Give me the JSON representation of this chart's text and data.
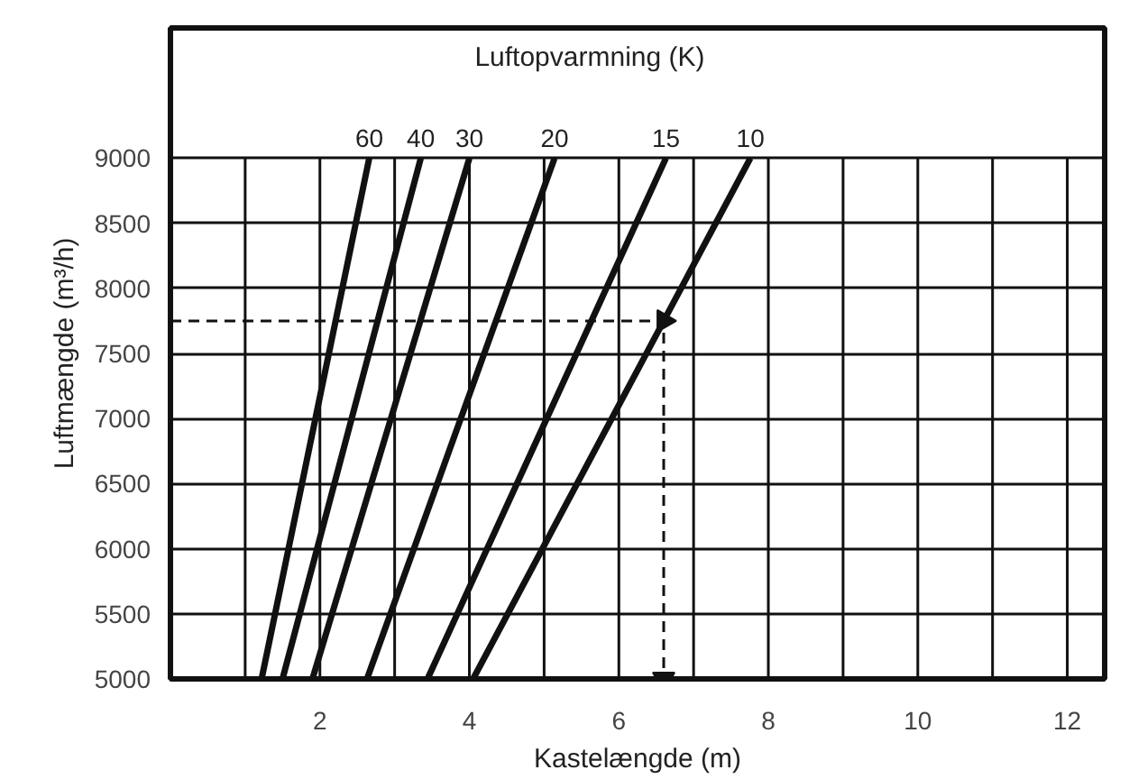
{
  "chart_data": {
    "type": "line",
    "legend_title": "Luftopvarmning (K)",
    "xlabel": "Kastelængde (m)",
    "ylabel": "Luftmængde (m³/h)",
    "series": [
      {
        "name": "60",
        "color": "#111111",
        "x": [
          1.22,
          2.66
        ],
        "values": [
          5000,
          9000
        ]
      },
      {
        "name": "40",
        "color": "#111111",
        "x": [
          1.5,
          3.35
        ],
        "values": [
          5000,
          9000
        ]
      },
      {
        "name": "30",
        "color": "#111111",
        "x": [
          1.9,
          4.0
        ],
        "values": [
          5000,
          9000
        ]
      },
      {
        "name": "20",
        "color": "#111111",
        "x": [
          2.63,
          5.14
        ],
        "values": [
          5000,
          9000
        ]
      },
      {
        "name": "15",
        "color": "#111111",
        "x": [
          3.44,
          6.63
        ],
        "values": [
          5000,
          9000
        ]
      },
      {
        "name": "10",
        "color": "#111111",
        "x": [
          4.05,
          7.76
        ],
        "values": [
          5000,
          9000
        ]
      },
      {
        "color": "#111111",
        "line_style": "dashed",
        "marker": "triangle",
        "x": [
          0,
          6.6,
          6.6
        ],
        "values": [
          7750,
          7750,
          5000
        ]
      }
    ],
    "xlim": [
      0,
      12.5
    ],
    "ylim": [
      5000,
      10000
    ],
    "xticks": [
      {
        "value": 1,
        "label": null
      },
      2,
      {
        "value": 3,
        "label": null
      },
      4,
      {
        "value": 5,
        "label": null
      },
      6,
      {
        "value": 7,
        "label": null
      },
      8,
      {
        "value": 9,
        "label": null
      },
      10,
      {
        "value": 11,
        "label": null
      },
      12
    ],
    "yticks": [
      5000,
      5500,
      6000,
      6500,
      7000,
      7500,
      8000,
      8500,
      9000
    ],
    "grid": true,
    "line_style": "solid",
    "marker": "none"
  }
}
